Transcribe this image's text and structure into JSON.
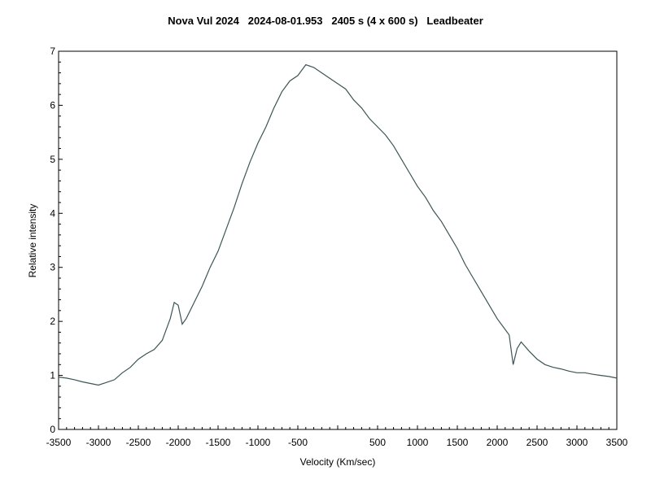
{
  "chart_data": {
    "type": "line",
    "title": "Nova Vul 2024   2024-08-01.953   2405 s (4 x 600 s)   Leadbeater",
    "xlabel": "Velocity (Km/sec)",
    "ylabel": "Relative intensity",
    "xlim": [
      -3500,
      3500
    ],
    "ylim": [
      0,
      7
    ],
    "grid": false,
    "x_tick_labels": [
      "-3500",
      "-3000",
      "-2500",
      "-2000",
      "-1500",
      "-1000",
      "-500",
      "500",
      "1000",
      "1500",
      "2000",
      "2500",
      "3000",
      "3500"
    ],
    "y_tick_labels": [
      "0",
      "1",
      "2",
      "3",
      "4",
      "5",
      "6",
      "7"
    ],
    "line_color": "#3d5555",
    "series": [
      {
        "x": [
          -3500,
          -3400,
          -3300,
          -3200,
          -3100,
          -3000,
          -2900,
          -2800,
          -2700,
          -2600,
          -2500,
          -2400,
          -2300,
          -2200,
          -2100,
          -2050,
          -2000,
          -1950,
          -1900,
          -1800,
          -1700,
          -1600,
          -1500,
          -1400,
          -1300,
          -1200,
          -1100,
          -1000,
          -900,
          -800,
          -700,
          -600,
          -500,
          -400,
          -300,
          -200,
          -100,
          0,
          100,
          200,
          300,
          400,
          500,
          600,
          700,
          800,
          900,
          1000,
          1100,
          1200,
          1300,
          1400,
          1500,
          1600,
          1700,
          1800,
          1900,
          2000,
          2100,
          2150,
          2200,
          2250,
          2300,
          2400,
          2500,
          2600,
          2700,
          2800,
          2900,
          3000,
          3100,
          3200,
          3300,
          3400,
          3500
        ],
        "y": [
          0.97,
          0.95,
          0.92,
          0.88,
          0.85,
          0.82,
          0.87,
          0.92,
          1.05,
          1.15,
          1.3,
          1.4,
          1.48,
          1.65,
          2.05,
          2.35,
          2.3,
          1.95,
          2.05,
          2.35,
          2.65,
          3.0,
          3.3,
          3.7,
          4.1,
          4.55,
          4.95,
          5.3,
          5.6,
          5.95,
          6.25,
          6.45,
          6.55,
          6.75,
          6.7,
          6.6,
          6.5,
          6.4,
          6.3,
          6.1,
          5.95,
          5.75,
          5.6,
          5.45,
          5.25,
          5.0,
          4.75,
          4.5,
          4.3,
          4.05,
          3.85,
          3.6,
          3.35,
          3.05,
          2.8,
          2.55,
          2.3,
          2.05,
          1.85,
          1.75,
          1.2,
          1.5,
          1.62,
          1.45,
          1.3,
          1.2,
          1.15,
          1.12,
          1.08,
          1.05,
          1.05,
          1.02,
          1.0,
          0.98,
          0.95
        ]
      }
    ]
  }
}
